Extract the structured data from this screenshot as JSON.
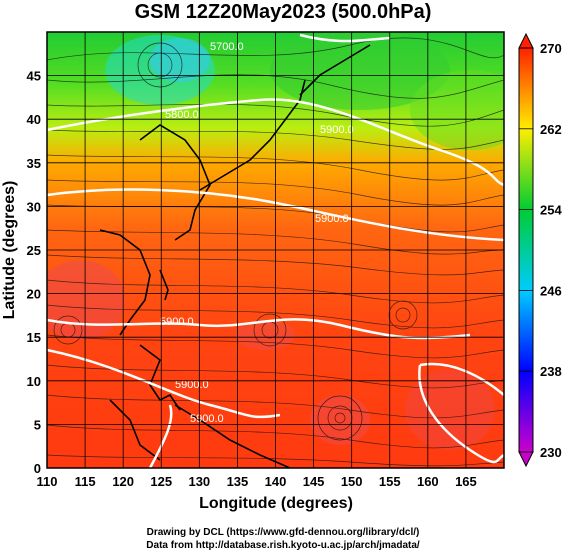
{
  "title": "GSM 12Z20May2023 (500.0hPa)",
  "axes": {
    "xlabel": "Longitude (degrees)",
    "ylabel": "Latitude  (degrees)",
    "x_ticks": [
      "110",
      "115",
      "120",
      "125",
      "130",
      "135",
      "140",
      "145",
      "150",
      "155",
      "160",
      "165"
    ],
    "y_ticks": [
      "0",
      "5",
      "10",
      "15",
      "20",
      "25",
      "30",
      "35",
      "40",
      "45"
    ]
  },
  "colorbar": {
    "ticks": [
      "230",
      "238",
      "246",
      "254",
      "262",
      "270"
    ],
    "colors": [
      "#cc00cc",
      "#0000ff",
      "#00ccff",
      "#00cc33",
      "#ffee00",
      "#ff2200"
    ]
  },
  "contour_labels": [
    "5900.0",
    "5900.0",
    "5900.0",
    "5900.0",
    "5900.0",
    "5700.0",
    "5800.0"
  ],
  "chart_data": {
    "type": "heatmap",
    "title": "GSM 12Z20May2023 (500.0hPa)",
    "xlabel": "Longitude (degrees)",
    "ylabel": "Latitude  (degrees)",
    "xlim": [
      110,
      170
    ],
    "ylim": [
      0,
      50
    ],
    "colorbar_range": [
      230,
      270
    ],
    "field_description_levels": [
      230,
      238,
      246,
      254,
      262,
      270
    ],
    "contours": [
      5700,
      5800,
      5900
    ]
  },
  "credits": {
    "line1": "Drawing by DCL (https://www.gfd-dennou.org/library/dcl/)",
    "line2": "Data from http://database.rish.kyoto-u.ac.jp/arch/jmadata/"
  }
}
